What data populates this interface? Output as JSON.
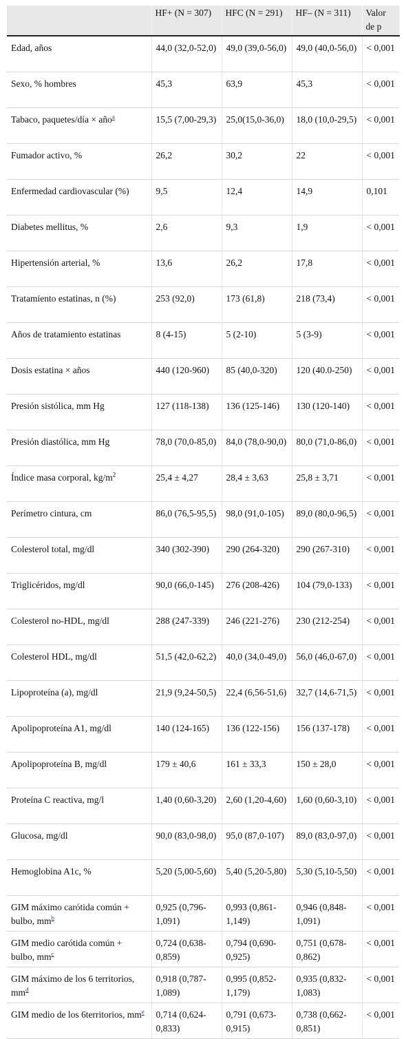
{
  "headers": [
    "",
    "HF+ (N = 307)",
    "HFC (N = 291)",
    "HF– (N = 311)",
    "Valor de p"
  ],
  "rows": [
    {
      "label": "Edad, años",
      "sup": "",
      "fn": "",
      "v": [
        "44,0 (32,0-52,0)",
        "49,0 (39,0-56,0)",
        "49,0 (40,0-56,0)",
        "< 0,001"
      ]
    },
    {
      "label": "Sexo, % hombres",
      "sup": "",
      "fn": "",
      "v": [
        "45,3",
        "63,9",
        "45,3",
        "< 0,001"
      ]
    },
    {
      "label": "Tabaco, paquetes/día × año",
      "sup": "",
      "fn": "a",
      "v": [
        "15,5 (7,00-29,3)",
        "25,0(15,0-36,0)",
        "18,0 (10,0-29,5)",
        "< 0,001"
      ]
    },
    {
      "label": "Fumador activo, %",
      "sup": "",
      "fn": "",
      "v": [
        "26,2",
        "30,2",
        "22",
        "< 0,001"
      ]
    },
    {
      "label": "Enfermedad cardiovascular (%)",
      "sup": "",
      "fn": "",
      "v": [
        "9,5",
        "12,4",
        "14,9",
        "0,101"
      ]
    },
    {
      "label": "Diabetes mellitus, %",
      "sup": "",
      "fn": "",
      "v": [
        "2,6",
        "9,3",
        "1,9",
        "< 0,001"
      ]
    },
    {
      "label": "Hipertensión arterial, %",
      "sup": "",
      "fn": "",
      "v": [
        "13,6",
        "26,2",
        "17,8",
        "< 0,001"
      ]
    },
    {
      "label": "Tratamiento estatinas, n (%)",
      "sup": "",
      "fn": "",
      "v": [
        "253 (92,0)",
        "173 (61,8)",
        "218 (73,4)",
        "< 0,001"
      ]
    },
    {
      "label": "Años de tratamiento estatinas",
      "sup": "",
      "fn": "",
      "v": [
        "8 (4-15)",
        "5 (2-10)",
        "5 (3-9)",
        "< 0,001"
      ]
    },
    {
      "label": "Dosis estatina × años",
      "sup": "",
      "fn": "",
      "v": [
        "440 (120-960)",
        "85 (40,0-320)",
        "120 (40.0-250)",
        "< 0,001"
      ]
    },
    {
      "label": "Presión sistólica, mm Hg",
      "sup": "",
      "fn": "",
      "v": [
        "127 (118-138)",
        "136 (125-146)",
        "130 (120-140)",
        "< 0,001"
      ]
    },
    {
      "label": "Presión diastólica, mm Hg",
      "sup": "",
      "fn": "",
      "v": [
        "78,0 (70,0-85,0)",
        "84,0 (78,0-90,0)",
        "80,0 (71,0-86,0)",
        "< 0,001"
      ]
    },
    {
      "label": "Índice masa corporal, kg/m",
      "sup": "2",
      "fn": "",
      "v": [
        "25,4 ± 4,27",
        "28,4 ± 3,63",
        "25,8 ± 3,71",
        "< 0,001"
      ]
    },
    {
      "label": "Perímetro cintura, cm",
      "sup": "",
      "fn": "",
      "v": [
        "86,0 (76,5-95,5)",
        "98,0 (91,0-105)",
        "89,0 (80,0-96,5)",
        "< 0,001"
      ]
    },
    {
      "label": "Colesterol total, mg/dl",
      "sup": "",
      "fn": "",
      "v": [
        "340 (302-390)",
        "290 (264-320)",
        "290 (267-310)",
        "< 0,001"
      ]
    },
    {
      "label": "Triglicéridos, mg/dl",
      "sup": "",
      "fn": "",
      "v": [
        "90,0 (66,0-145)",
        "276 (208-426)",
        "104 (79,0-133)",
        "< 0,001"
      ]
    },
    {
      "label": "Colesterol no-HDL, mg/dl",
      "sup": "",
      "fn": "",
      "v": [
        "288 (247-339)",
        "246 (221-276)",
        "230 (212-254)",
        "< 0,001"
      ]
    },
    {
      "label": "Colesterol HDL, mg/dl",
      "sup": "",
      "fn": "",
      "v": [
        "51,5 (42,0-62,2)",
        "40,0 (34,0-49,0)",
        "56,0 (46,0-67,0)",
        "< 0,001"
      ]
    },
    {
      "label": "Lipoproteína (a), mg/dl",
      "sup": "",
      "fn": "",
      "v": [
        "21,9 (9,24-50,5)",
        "22,4 (6,56-51,6)",
        "32,7 (14,6-71,5)",
        "< 0,001"
      ]
    },
    {
      "label": "Apolipoproteína A1, mg/dl",
      "sup": "",
      "fn": "",
      "v": [
        "140 (124-165)",
        "136 (122-156)",
        "156 (137-178)",
        "< 0,001"
      ]
    },
    {
      "label": "Apolipoproteína B, mg/dl",
      "sup": "",
      "fn": "",
      "v": [
        "179 ± 40,6",
        "161 ± 33,3",
        "150 ± 28,0",
        "< 0,001"
      ]
    },
    {
      "label": "Proteína C reactiva, mg/l",
      "sup": "",
      "fn": "",
      "v": [
        "1,40 (0,60-3,20)",
        "2,60 (1,20-4,60)",
        "1,60 (0,60-3,10)",
        "< 0,001"
      ]
    },
    {
      "label": "Glucosa, mg/dl",
      "sup": "",
      "fn": "",
      "v": [
        "90,0 (83,0-98,0)",
        "95,0 (87,0-107)",
        "89,0 (83,0-97,0)",
        "< 0,001"
      ]
    },
    {
      "label": "Hemoglobina A1c, %",
      "sup": "",
      "fn": "",
      "v": [
        "5,20 (5,00-5,60)",
        "5,40 (5,20-5,80)",
        "5,30 (5,10-5,50)",
        "< 0,001"
      ]
    },
    {
      "label": "GIM máximo carótida común + bulbo, mm",
      "sup": "",
      "fn": "b",
      "v": [
        "0,925 (0,796-1,091)",
        "0,993 (0,861-1,149)",
        "0,946 (0,848-1,091)",
        "< 0,001"
      ]
    },
    {
      "label": "GIM medio carótida común + bulbo, mm",
      "sup": "",
      "fn": "c",
      "v": [
        "0,724 (0,638-0,859)",
        "0,794 (0,690-0,925)",
        "0,751 (0,678-0,862)",
        "< 0,001"
      ]
    },
    {
      "label": "GIM máximo de los 6 territorios, mm",
      "sup": "",
      "fn": "d",
      "v": [
        "0,918 (0,787-1,089)",
        "0,995 (0,852-1,179)",
        "0,935 (0,832-1,083)",
        "< 0,001"
      ]
    },
    {
      "label": "GIM medio de los 6territorios, mm",
      "sup": "",
      "fn": "e",
      "v": [
        "0,714 (0,624-0,833)",
        "0,791 (0,673-0,915)",
        "0,738 (0,662-0,851)",
        "< 0,001"
      ]
    }
  ]
}
